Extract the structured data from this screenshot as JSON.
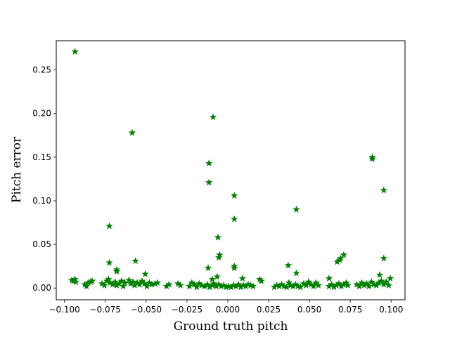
{
  "chart_data": {
    "type": "scatter",
    "title": "",
    "xlabel": "Ground truth pitch",
    "ylabel": "Pitch error",
    "xlim": [
      -0.105,
      0.1085
    ],
    "ylim": [
      -0.0135,
      0.2835
    ],
    "xticks": [
      -0.1,
      -0.075,
      -0.05,
      -0.025,
      0.0,
      0.025,
      0.05,
      0.075,
      0.1
    ],
    "xtick_labels": [
      "−0.100",
      "−0.075",
      "−0.050",
      "−0.025",
      "0.000",
      "0.025",
      "0.050",
      "0.075",
      "0.100"
    ],
    "yticks": [
      0.0,
      0.05,
      0.1,
      0.15,
      0.2,
      0.25
    ],
    "ytick_labels": [
      "0.00",
      "0.05",
      "0.10",
      "0.15",
      "0.20",
      "0.25"
    ],
    "grid": false,
    "marker": "star",
    "color": "#008000",
    "series": [
      {
        "points": [
          [
            -0.0935,
            0.271
          ],
          [
            -0.0585,
            0.178
          ],
          [
            -0.009,
            0.196
          ],
          [
            -0.0115,
            0.143
          ],
          [
            -0.0115,
            0.121
          ],
          [
            0.0885,
            0.15
          ],
          [
            0.0885,
            0.148
          ],
          [
            0.0955,
            0.112
          ],
          [
            0.004,
            0.106
          ],
          [
            0.004,
            0.079
          ],
          [
            0.042,
            0.09
          ],
          [
            -0.0725,
            0.071
          ],
          [
            -0.006,
            0.058
          ],
          [
            -0.005,
            0.038
          ],
          [
            -0.0055,
            0.035
          ],
          [
            0.071,
            0.038
          ],
          [
            0.069,
            0.034
          ],
          [
            0.067,
            0.03
          ],
          [
            0.0685,
            0.032
          ],
          [
            0.0955,
            0.034
          ],
          [
            -0.0725,
            0.029
          ],
          [
            -0.0565,
            0.031
          ],
          [
            -0.068,
            0.021
          ],
          [
            -0.068,
            0.019
          ],
          [
            -0.0505,
            0.016
          ],
          [
            0.037,
            0.026
          ],
          [
            0.004,
            0.025
          ],
          [
            0.004,
            0.023
          ],
          [
            -0.012,
            0.023
          ],
          [
            0.042,
            0.017
          ],
          [
            0.093,
            0.015
          ],
          [
            -0.0065,
            0.013
          ],
          [
            -0.0095,
            0.01
          ],
          [
            0.009,
            0.011
          ],
          [
            0.062,
            0.011
          ],
          [
            -0.0955,
            0.009
          ],
          [
            -0.0945,
            0.008
          ],
          [
            -0.0935,
            0.01
          ],
          [
            -0.093,
            0.007
          ],
          [
            -0.0875,
            0.004
          ],
          [
            -0.0865,
            0.002
          ],
          [
            -0.0855,
            0.006
          ],
          [
            -0.084,
            0.007
          ],
          [
            -0.083,
            0.008
          ],
          [
            -0.077,
            0.005
          ],
          [
            -0.0755,
            0.003
          ],
          [
            -0.074,
            0.008
          ],
          [
            -0.073,
            0.01
          ],
          [
            -0.072,
            0.006
          ],
          [
            -0.0705,
            0.004
          ],
          [
            -0.069,
            0.007
          ],
          [
            -0.068,
            0.003
          ],
          [
            -0.0665,
            0.005
          ],
          [
            -0.065,
            0.008
          ],
          [
            -0.064,
            0.002
          ],
          [
            -0.063,
            0.006
          ],
          [
            -0.0605,
            0.009
          ],
          [
            -0.0595,
            0.005
          ],
          [
            -0.058,
            0.007
          ],
          [
            -0.057,
            0.003
          ],
          [
            -0.0555,
            0.006
          ],
          [
            -0.054,
            0.004
          ],
          [
            -0.0525,
            0.008
          ],
          [
            -0.051,
            0.005
          ],
          [
            -0.0495,
            0.002
          ],
          [
            -0.048,
            0.006
          ],
          [
            -0.0465,
            0.004
          ],
          [
            -0.0445,
            0.005
          ],
          [
            -0.043,
            0.006
          ],
          [
            -0.0375,
            0.002
          ],
          [
            -0.036,
            0.004
          ],
          [
            -0.0305,
            0.005
          ],
          [
            -0.029,
            0.003
          ],
          [
            -0.0235,
            0.002
          ],
          [
            -0.022,
            0.006
          ],
          [
            -0.0205,
            0.004
          ],
          [
            -0.019,
            0.001
          ],
          [
            -0.0175,
            0.005
          ],
          [
            -0.016,
            0.003
          ],
          [
            -0.014,
            0.002
          ],
          [
            -0.0125,
            0.004
          ],
          [
            -0.011,
            0.001
          ],
          [
            -0.0095,
            0.003
          ],
          [
            -0.0085,
            0.005
          ],
          [
            -0.007,
            0.002
          ],
          [
            -0.0055,
            0.004
          ],
          [
            -0.004,
            0.002
          ],
          [
            -0.0025,
            0.003
          ],
          [
            -0.001,
            0.001
          ],
          [
            0.0005,
            0.002
          ],
          [
            0.002,
            0.001
          ],
          [
            0.0035,
            0.003
          ],
          [
            0.005,
            0.002
          ],
          [
            0.0065,
            0.004
          ],
          [
            0.008,
            0.001
          ],
          [
            0.0095,
            0.003
          ],
          [
            0.011,
            0.002
          ],
          [
            0.0125,
            0.004
          ],
          [
            0.014,
            0.003
          ],
          [
            0.0155,
            0.002
          ],
          [
            0.0195,
            0.01
          ],
          [
            0.0205,
            0.008
          ],
          [
            0.0285,
            0.001
          ],
          [
            0.03,
            0.003
          ],
          [
            0.0315,
            0.002
          ],
          [
            0.033,
            0.004
          ],
          [
            0.0345,
            0.002
          ],
          [
            0.036,
            0.001
          ],
          [
            0.0375,
            0.006
          ],
          [
            0.0385,
            0.003
          ],
          [
            0.04,
            0.002
          ],
          [
            0.0415,
            0.004
          ],
          [
            0.043,
            0.002
          ],
          [
            0.0445,
            0.001
          ],
          [
            0.0465,
            0.005
          ],
          [
            0.048,
            0.003
          ],
          [
            0.0495,
            0.007
          ],
          [
            0.051,
            0.004
          ],
          [
            0.0525,
            0.002
          ],
          [
            0.054,
            0.006
          ],
          [
            0.0555,
            0.003
          ],
          [
            0.062,
            0.002
          ],
          [
            0.0635,
            0.004
          ],
          [
            0.065,
            0.001
          ],
          [
            0.0665,
            0.003
          ],
          [
            0.068,
            0.005
          ],
          [
            0.0695,
            0.002
          ],
          [
            0.071,
            0.004
          ],
          [
            0.0725,
            0.006
          ],
          [
            0.0735,
            0.003
          ],
          [
            0.079,
            0.004
          ],
          [
            0.0805,
            0.002
          ],
          [
            0.082,
            0.006
          ],
          [
            0.0835,
            0.003
          ],
          [
            0.085,
            0.005
          ],
          [
            0.0865,
            0.002
          ],
          [
            0.088,
            0.007
          ],
          [
            0.0895,
            0.004
          ],
          [
            0.091,
            0.003
          ],
          [
            0.0925,
            0.006
          ],
          [
            0.094,
            0.008
          ],
          [
            0.0955,
            0.004
          ],
          [
            0.097,
            0.007
          ],
          [
            0.0985,
            0.003
          ],
          [
            0.0995,
            0.011
          ]
        ]
      }
    ]
  }
}
